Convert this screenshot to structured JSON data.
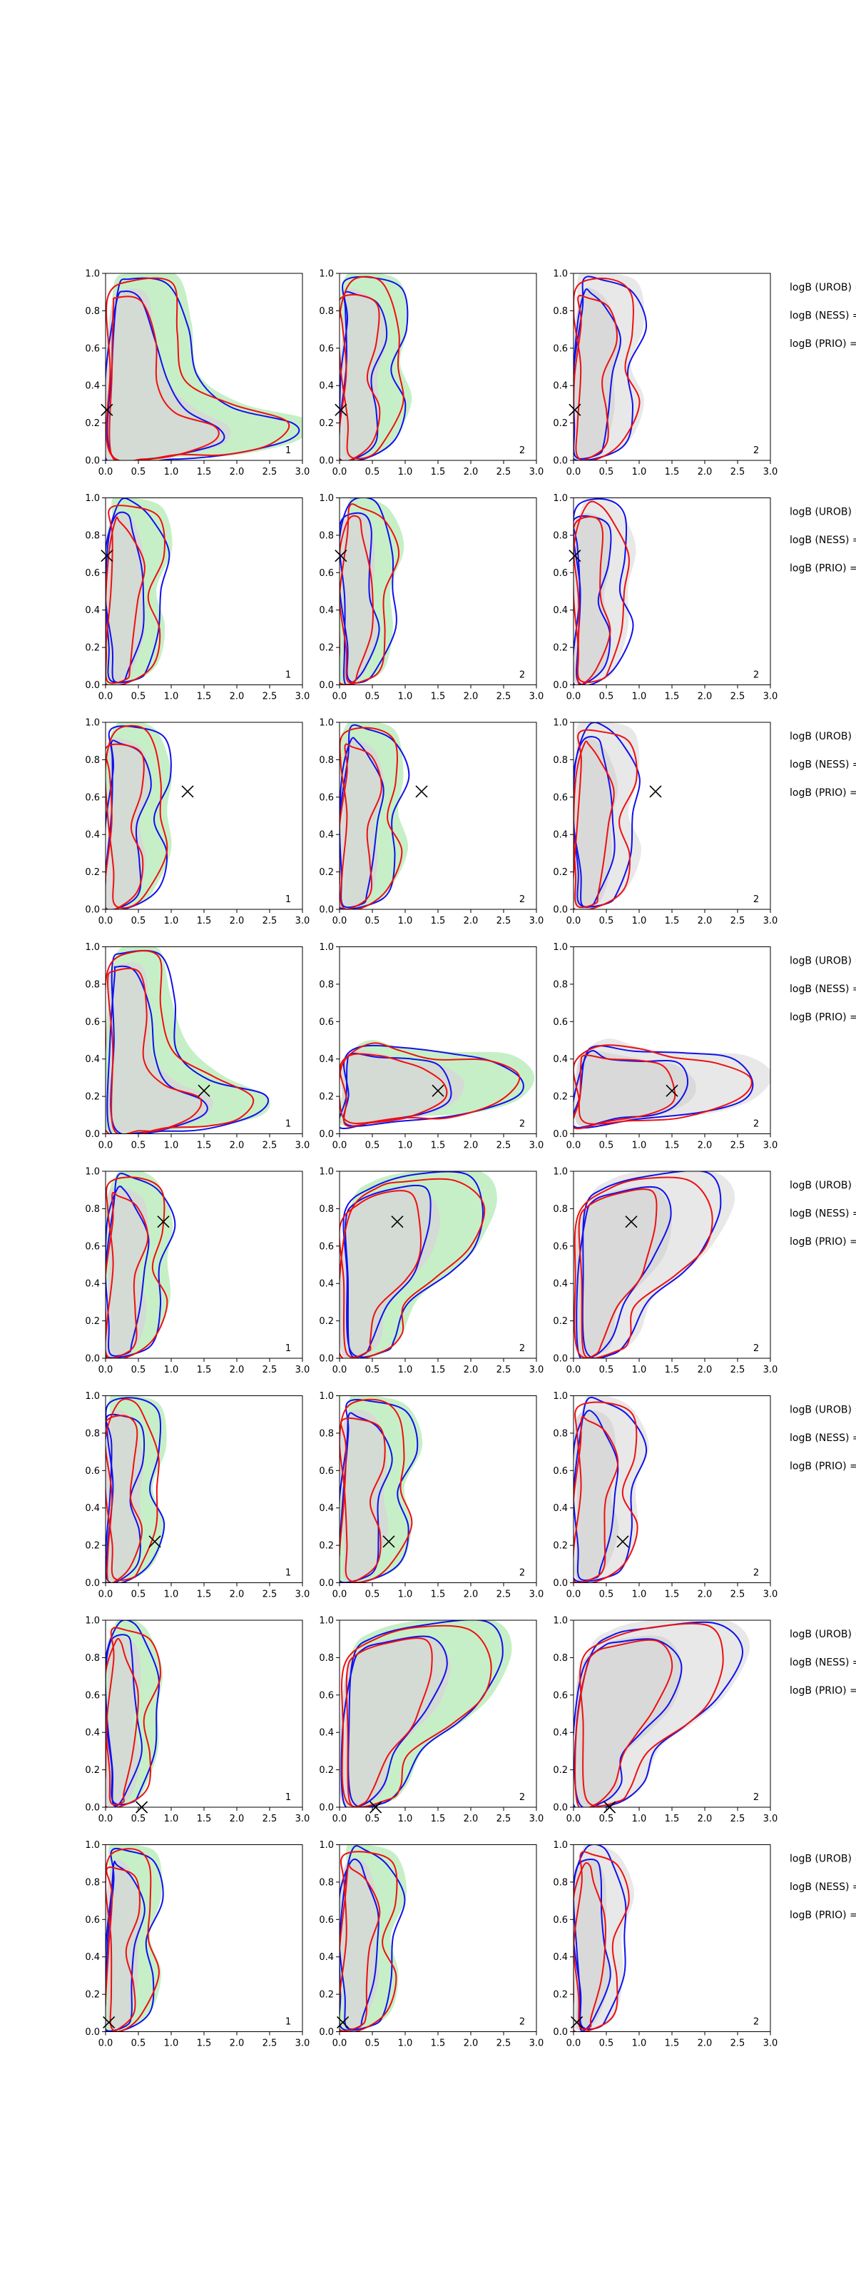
{
  "figure": {
    "colors": {
      "fill_outer": "#c7efc7",
      "fill_inner": "#d6d6d6",
      "fill_outer_alt": "#e8e8e8",
      "contour_a": "#1010ee",
      "contour_b": "#ee1010",
      "marker": "#000000",
      "frame": "#000000"
    },
    "xticks": [
      "0.0",
      "0.5",
      "1.0",
      "1.5",
      "2.0",
      "2.5",
      "3.0"
    ],
    "yticks": [
      "0.0",
      "0.2",
      "0.4",
      "0.6",
      "0.8",
      "1.0"
    ]
  },
  "chart_data": [
    {
      "type": "contour",
      "row": 1,
      "col": 1,
      "panel_label": "1",
      "xlim": [
        0,
        3
      ],
      "ylim": [
        0,
        1
      ],
      "marker": [
        0.02,
        0.27
      ],
      "shape": "L",
      "scale_x": 1.15,
      "scale_y": 1.0
    },
    {
      "type": "contour",
      "row": 1,
      "col": 2,
      "panel_label": "2",
      "xlim": [
        0,
        3
      ],
      "ylim": [
        0,
        1
      ],
      "marker": [
        0.02,
        0.27
      ],
      "shape": "tall",
      "scale_x": 0.95,
      "scale_y": 1.0
    },
    {
      "type": "contour",
      "row": 1,
      "col": 3,
      "panel_label": "2",
      "xlim": [
        0,
        3
      ],
      "ylim": [
        0,
        1
      ],
      "marker": [
        0.02,
        0.27
      ],
      "shape": "tall",
      "scale_x": 0.95,
      "scale_y": 1.0,
      "alt": true
    },
    {
      "type": "contour",
      "row": 2,
      "col": 1,
      "panel_label": "1",
      "xlim": [
        0,
        3
      ],
      "ylim": [
        0,
        1
      ],
      "marker": [
        0.02,
        0.69
      ],
      "shape": "tall",
      "scale_x": 0.85,
      "scale_y": 1.0
    },
    {
      "type": "contour",
      "row": 2,
      "col": 2,
      "panel_label": "2",
      "xlim": [
        0,
        3
      ],
      "ylim": [
        0,
        1
      ],
      "marker": [
        0.02,
        0.69
      ],
      "shape": "tall",
      "scale_x": 0.8,
      "scale_y": 1.0
    },
    {
      "type": "contour",
      "row": 2,
      "col": 3,
      "panel_label": "2",
      "xlim": [
        0,
        3
      ],
      "ylim": [
        0,
        1
      ],
      "marker": [
        0.02,
        0.69
      ],
      "shape": "tall",
      "scale_x": 0.8,
      "scale_y": 1.0,
      "alt": true
    },
    {
      "type": "contour",
      "row": 3,
      "col": 1,
      "panel_label": "1",
      "xlim": [
        0,
        3
      ],
      "ylim": [
        0,
        1
      ],
      "marker": [
        1.25,
        0.63
      ],
      "shape": "tall",
      "scale_x": 0.9,
      "scale_y": 1.0
    },
    {
      "type": "contour",
      "row": 3,
      "col": 2,
      "panel_label": "2",
      "xlim": [
        0,
        3
      ],
      "ylim": [
        0,
        1
      ],
      "marker": [
        1.25,
        0.63
      ],
      "shape": "tall",
      "scale_x": 0.9,
      "scale_y": 1.0
    },
    {
      "type": "contour",
      "row": 3,
      "col": 3,
      "panel_label": "2",
      "xlim": [
        0,
        3
      ],
      "ylim": [
        0,
        1
      ],
      "marker": [
        1.25,
        0.63
      ],
      "shape": "tall",
      "scale_x": 0.9,
      "scale_y": 1.0,
      "alt": true
    },
    {
      "type": "contour",
      "row": 4,
      "col": 1,
      "panel_label": "1",
      "xlim": [
        0,
        3
      ],
      "ylim": [
        0,
        1
      ],
      "marker": [
        1.5,
        0.23
      ],
      "shape": "L",
      "scale_x": 0.95,
      "scale_y": 1.0
    },
    {
      "type": "contour",
      "row": 4,
      "col": 2,
      "panel_label": "2",
      "xlim": [
        0,
        3
      ],
      "ylim": [
        0,
        1
      ],
      "marker": [
        1.5,
        0.23
      ],
      "shape": "flat",
      "scale_x": 1.0,
      "scale_y": 1.0
    },
    {
      "type": "contour",
      "row": 4,
      "col": 3,
      "panel_label": "2",
      "xlim": [
        0,
        3
      ],
      "ylim": [
        0,
        1
      ],
      "marker": [
        1.5,
        0.23
      ],
      "shape": "flat",
      "scale_x": 1.0,
      "scale_y": 1.0,
      "alt": true
    },
    {
      "type": "contour",
      "row": 5,
      "col": 1,
      "panel_label": "1",
      "xlim": [
        0,
        3
      ],
      "ylim": [
        0,
        1
      ],
      "marker": [
        0.88,
        0.73
      ],
      "shape": "tall",
      "scale_x": 0.9,
      "scale_y": 1.0
    },
    {
      "type": "contour",
      "row": 5,
      "col": 2,
      "panel_label": "2",
      "xlim": [
        0,
        3
      ],
      "ylim": [
        0,
        1
      ],
      "marker": [
        0.88,
        0.73
      ],
      "shape": "step",
      "scale_x": 1.0,
      "scale_y": 1.0
    },
    {
      "type": "contour",
      "row": 5,
      "col": 3,
      "panel_label": "2",
      "xlim": [
        0,
        3
      ],
      "ylim": [
        0,
        1
      ],
      "marker": [
        0.88,
        0.73
      ],
      "shape": "step",
      "scale_x": 1.0,
      "scale_y": 1.0,
      "alt": true
    },
    {
      "type": "contour",
      "row": 6,
      "col": 1,
      "panel_label": "1",
      "xlim": [
        0,
        3
      ],
      "ylim": [
        0,
        1
      ],
      "marker": [
        0.75,
        0.22
      ],
      "shape": "tall",
      "scale_x": 0.8,
      "scale_y": 1.0
    },
    {
      "type": "contour",
      "row": 6,
      "col": 2,
      "panel_label": "2",
      "xlim": [
        0,
        3
      ],
      "ylim": [
        0,
        1
      ],
      "marker": [
        0.75,
        0.22
      ],
      "shape": "tall",
      "scale_x": 1.05,
      "scale_y": 1.0
    },
    {
      "type": "contour",
      "row": 6,
      "col": 3,
      "panel_label": "2",
      "xlim": [
        0,
        3
      ],
      "ylim": [
        0,
        1
      ],
      "marker": [
        0.75,
        0.22
      ],
      "shape": "tall",
      "scale_x": 0.95,
      "scale_y": 1.0,
      "alt": true
    },
    {
      "type": "contour",
      "row": 7,
      "col": 1,
      "panel_label": "1",
      "xlim": [
        0,
        3
      ],
      "ylim": [
        0,
        1
      ],
      "marker": [
        0.55,
        0.0
      ],
      "shape": "tall",
      "scale_x": 0.75,
      "scale_y": 1.0
    },
    {
      "type": "contour",
      "row": 7,
      "col": 2,
      "panel_label": "2",
      "xlim": [
        0,
        3
      ],
      "ylim": [
        0,
        1
      ],
      "marker": [
        0.55,
        0.0
      ],
      "shape": "step",
      "scale_x": 1.1,
      "scale_y": 1.0
    },
    {
      "type": "contour",
      "row": 7,
      "col": 3,
      "panel_label": "2",
      "xlim": [
        0,
        3
      ],
      "ylim": [
        0,
        1
      ],
      "marker": [
        0.55,
        0.0
      ],
      "shape": "step",
      "scale_x": 1.1,
      "scale_y": 1.0,
      "alt": true
    },
    {
      "type": "contour",
      "row": 8,
      "col": 1,
      "panel_label": "1",
      "xlim": [
        0,
        3
      ],
      "ylim": [
        0,
        1
      ],
      "marker": [
        0.05,
        0.05
      ],
      "shape": "tall",
      "scale_x": 0.75,
      "scale_y": 1.0
    },
    {
      "type": "contour",
      "row": 8,
      "col": 2,
      "panel_label": "2",
      "xlim": [
        0,
        3
      ],
      "ylim": [
        0,
        1
      ],
      "marker": [
        0.05,
        0.05
      ],
      "shape": "tall",
      "scale_x": 0.85,
      "scale_y": 1.0
    },
    {
      "type": "contour",
      "row": 8,
      "col": 3,
      "panel_label": "2",
      "xlim": [
        0,
        3
      ],
      "ylim": [
        0,
        1
      ],
      "marker": [
        0.05,
        0.05
      ],
      "shape": "tall",
      "scale_x": 0.75,
      "scale_y": 1.0,
      "alt": true
    }
  ],
  "side_labels": [
    [
      "logB (UROB) =",
      "logB (NESS) =",
      "logB (PRIO) ="
    ],
    [
      "logB (UROB) =",
      "logB (NESS) =",
      "logB (PRIO) ="
    ],
    [
      "logB (UROB) =",
      "logB (NESS) =",
      "logB (PRIO) ="
    ],
    [
      "logB (UROB) =",
      "logB (NESS) =",
      "logB (PRIO) ="
    ],
    [
      "logB (UROB) =",
      "logB (NESS) =",
      "logB (PRIO) ="
    ],
    [
      "logB (UROB) =",
      "logB (NESS) =",
      "logB (PRIO) ="
    ],
    [
      "logB (UROB) =",
      "logB (NESS) =",
      "logB (PRIO) ="
    ],
    [
      "logB (UROB) =",
      "logB (NESS) =",
      "logB (PRIO) ="
    ]
  ]
}
